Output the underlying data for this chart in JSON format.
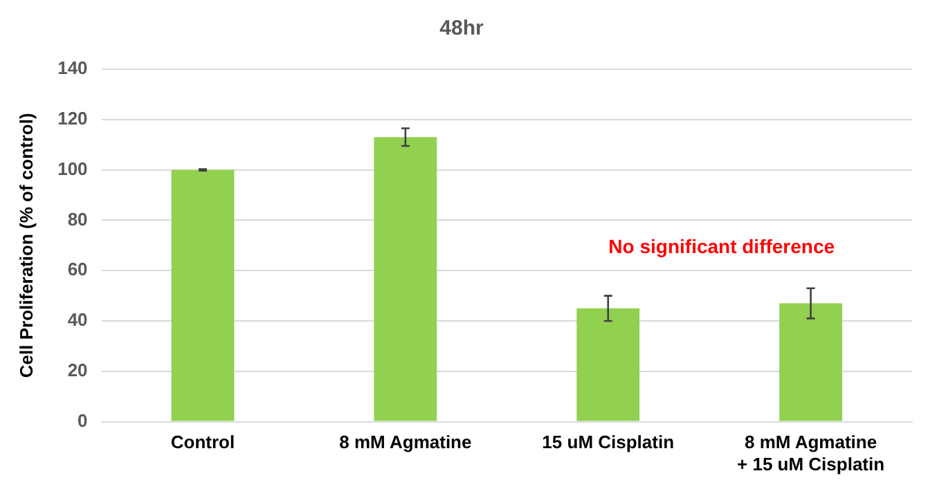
{
  "chart_data": {
    "type": "bar",
    "title": "48hr",
    "ylabel": "Cell Proliferation (% of control)",
    "categories": [
      "Control",
      "8 mM Agmatine",
      "15 uM Cisplatin",
      "8 mM Agmatine\n+ 15 uM Cisplatin"
    ],
    "values": [
      100,
      113,
      45,
      47
    ],
    "errors": [
      0.3,
      3.5,
      5,
      6
    ],
    "color": "#92d050",
    "ylim": [
      0,
      140
    ],
    "yticks": [
      0,
      20,
      40,
      60,
      80,
      100,
      120,
      140
    ],
    "grid": "y",
    "annotations": [
      "No significant difference"
    ]
  }
}
